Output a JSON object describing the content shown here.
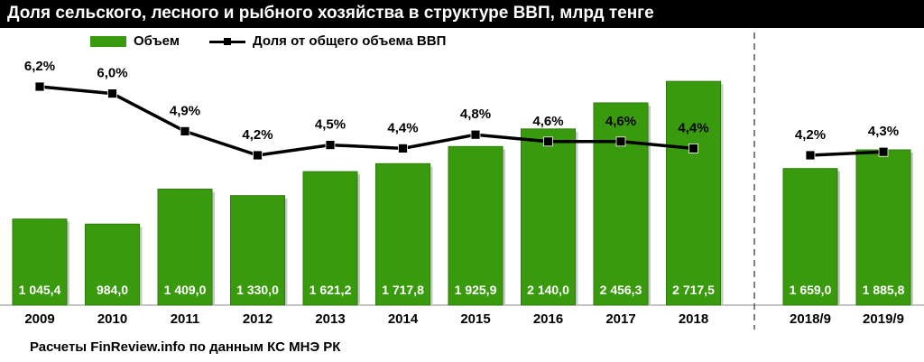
{
  "title": "Доля сельского, лесного и рыбного хозяйства в структуре ВВП, млрд тенге",
  "source": "Расчеты FinReview.info по данным КС МНЭ РК",
  "colors": {
    "bar": "#3a9a0e",
    "bar_edge": "#2c7a08",
    "line": "#000000",
    "title_bg": "#000000",
    "divider": "#555555"
  },
  "chart_data": {
    "type": "bar",
    "categories": [
      "2009",
      "2010",
      "2011",
      "2012",
      "2013",
      "2014",
      "2015",
      "2016",
      "2017",
      "2018",
      "2018/9",
      "2019/9"
    ],
    "groups": [
      {
        "categories": [
          "2009",
          "2010",
          "2011",
          "2012",
          "2013",
          "2014",
          "2015",
          "2016",
          "2017",
          "2018"
        ]
      },
      {
        "categories": [
          "2018/9",
          "2019/9"
        ]
      }
    ],
    "series": [
      {
        "name": "Объем",
        "type": "bar",
        "values": [
          1045.4,
          984.0,
          1409.0,
          1330.0,
          1621.2,
          1717.8,
          1925.9,
          2140.0,
          2456.3,
          2717.5,
          1659.0,
          1885.8
        ],
        "labels": [
          "1 045,4",
          "984,0",
          "1 409,0",
          "1 330,0",
          "1 621,2",
          "1 717,8",
          "1 925,9",
          "2 140,0",
          "2 456,3",
          "2 717,5",
          "1 659,0",
          "1 885,8"
        ]
      },
      {
        "name": "Доля от общего объема ВВП",
        "type": "line",
        "values": [
          6.2,
          6.0,
          4.9,
          4.2,
          4.5,
          4.4,
          4.8,
          4.6,
          4.6,
          4.4,
          4.2,
          4.3
        ],
        "labels": [
          "6,2%",
          "6,0%",
          "4,9%",
          "4,2%",
          "4,5%",
          "4,4%",
          "4,8%",
          "4,6%",
          "4,6%",
          "4,4%",
          "4,2%",
          "4,3%"
        ]
      }
    ],
    "legend_position": "top",
    "grid": false
  }
}
